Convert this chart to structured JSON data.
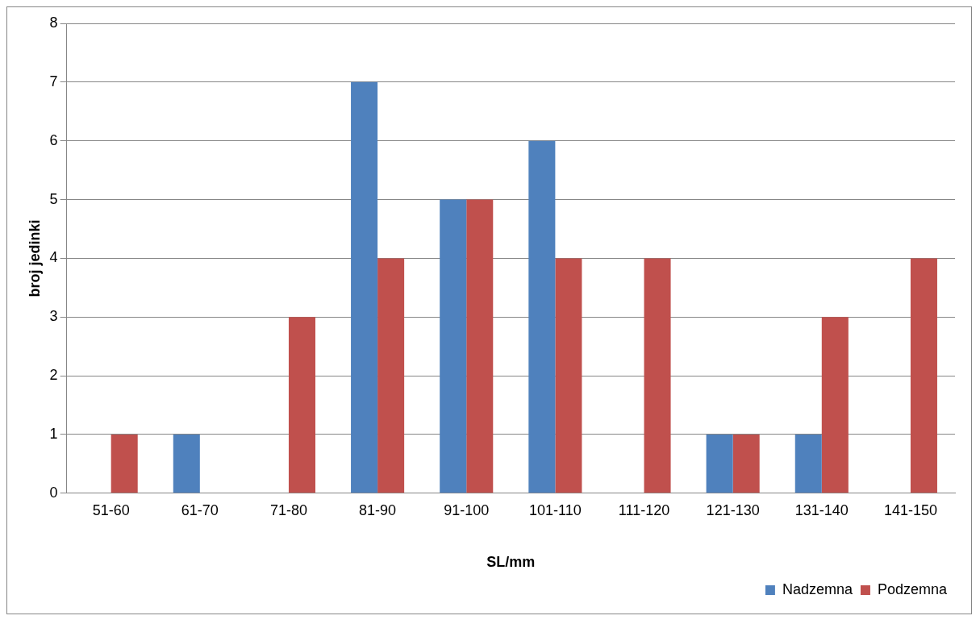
{
  "chart_data": {
    "type": "bar",
    "categories": [
      "51-60",
      "61-70",
      "71-80",
      "81-90",
      "91-100",
      "101-110",
      "111-120",
      "121-130",
      "131-140",
      "141-150"
    ],
    "series": [
      {
        "name": "Nadzemna",
        "color": "#4f81bd",
        "values": [
          0,
          1,
          0,
          7,
          5,
          6,
          0,
          1,
          1,
          0
        ]
      },
      {
        "name": "Podzemna",
        "color": "#c0504d",
        "values": [
          1,
          0,
          3,
          4,
          5,
          4,
          4,
          1,
          3,
          4
        ]
      }
    ],
    "xlabel": "SL/mm",
    "ylabel": "broj jedinki",
    "ylim": [
      0,
      8
    ],
    "yticks": [
      0,
      1,
      2,
      3,
      4,
      5,
      6,
      7,
      8
    ],
    "grid": "y",
    "legend": "bottom right"
  }
}
